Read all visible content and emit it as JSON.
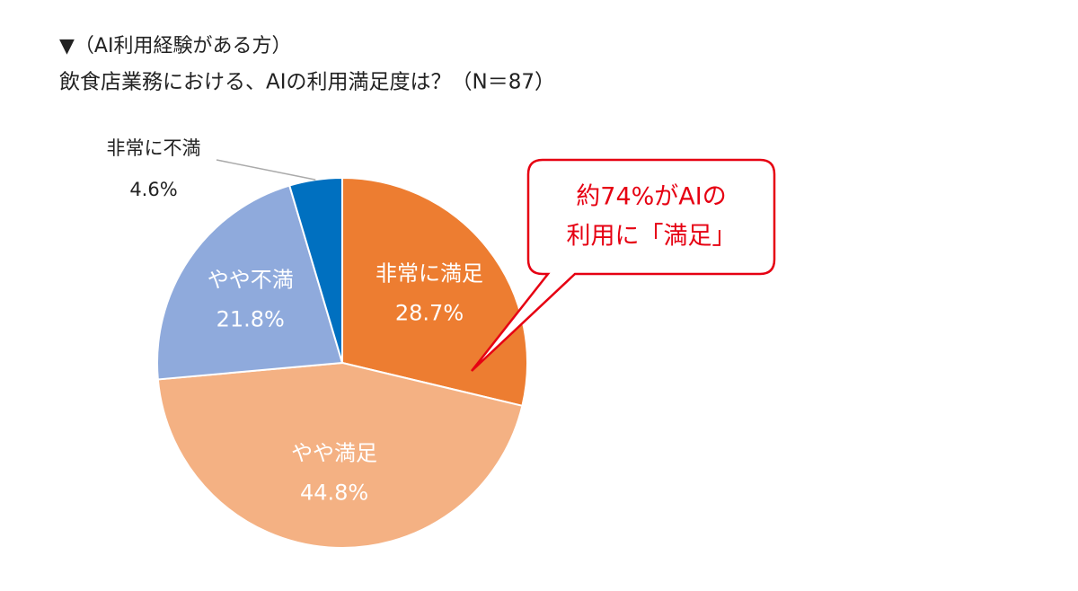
{
  "chart_data": {
    "type": "pie",
    "subtitle": "▼（AI利用経験がある方）",
    "title": "飲食店業務における、AIの利用満足度は？（N＝87）",
    "categories": [
      "非常に満足",
      "やや満足",
      "やや不満",
      "非常に不満"
    ],
    "values": [
      28.7,
      44.8,
      21.8,
      4.6
    ],
    "value_labels": [
      "28.7%",
      "44.8%",
      "21.8%",
      "4.6%"
    ],
    "colors": [
      "#ED7D31",
      "#F4B183",
      "#8FAADC",
      "#0070C0"
    ],
    "annotation": [
      "約74%がAIの",
      "利用に「満足」"
    ]
  }
}
